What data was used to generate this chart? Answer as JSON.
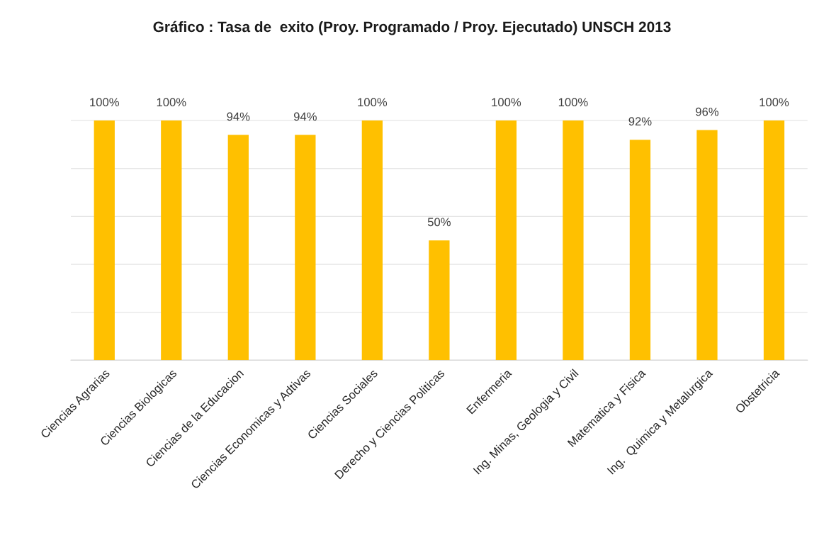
{
  "chart_data": {
    "type": "bar",
    "title": "Gráfico : Tasa de  exito (Proy. Programado / Proy. Ejecutado) UNSCH 2013",
    "categories": [
      "Ciencias Agrarias",
      "Ciencias Biologicas",
      "Ciencias de la Educacion",
      "Ciencias Economicas y Adtivas",
      "Ciencias Sociales",
      "Derecho y Ciencias Politicas",
      "Enfermeria",
      "Ing. Minas, Geologia y Civil",
      "Matematica y Fisica",
      "Ing.  Quimica y Metalurgica",
      "Obstetricia"
    ],
    "values": [
      100,
      100,
      94,
      94,
      100,
      50,
      100,
      100,
      92,
      96,
      100
    ],
    "value_labels": [
      "100%",
      "100%",
      "94%",
      "94%",
      "100%",
      "50%",
      "100%",
      "100%",
      "92%",
      "96%",
      "100%"
    ],
    "color": "#ffc000",
    "yticks": [
      {
        "value": 0,
        "label": null
      },
      {
        "value": 20,
        "label": null
      },
      {
        "value": 40,
        "label": null
      },
      {
        "value": 60,
        "label": null
      },
      {
        "value": 80,
        "label": null
      },
      {
        "value": 100,
        "label": null
      }
    ],
    "tick_labels": "x",
    "grid": "y"
  }
}
